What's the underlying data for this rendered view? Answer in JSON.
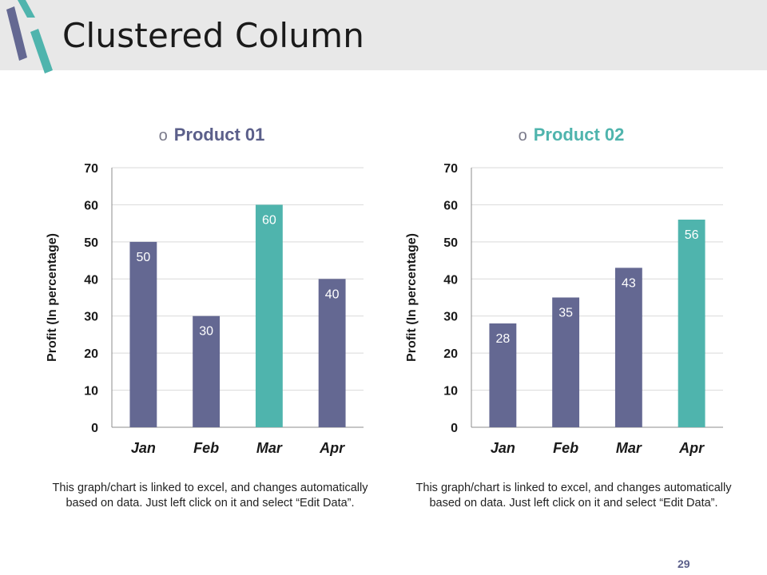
{
  "slide": {
    "title": "Clustered Column",
    "page_number": "29"
  },
  "colors": {
    "primary": "#646892",
    "accent": "#4fb4ad",
    "header_band": "#e8e8e8"
  },
  "bullet": "o",
  "chart_data": [
    {
      "type": "bar",
      "title": "Product 01",
      "title_color": "#5b5f8a",
      "categories": [
        "Jan",
        "Feb",
        "Mar",
        "Apr"
      ],
      "values": [
        50,
        30,
        60,
        40
      ],
      "bar_colors": [
        "#646892",
        "#646892",
        "#4fb4ad",
        "#646892"
      ],
      "xlabel": "",
      "ylabel": "Profit  (In percentage)",
      "ylim": [
        0,
        70
      ],
      "yticks": [
        0,
        10,
        20,
        30,
        40,
        50,
        60,
        70
      ],
      "grid": true,
      "caption": "This graph/chart is linked to excel, and changes automatically based on data. Just left click on it and select “Edit Data”."
    },
    {
      "type": "bar",
      "title": "Product 02",
      "title_color": "#4fb4ad",
      "categories": [
        "Jan",
        "Feb",
        "Mar",
        "Apr"
      ],
      "values": [
        28,
        35,
        43,
        56
      ],
      "bar_colors": [
        "#646892",
        "#646892",
        "#646892",
        "#4fb4ad"
      ],
      "xlabel": "",
      "ylabel": "Profit  (In percentage)",
      "ylim": [
        0,
        70
      ],
      "yticks": [
        0,
        10,
        20,
        30,
        40,
        50,
        60,
        70
      ],
      "grid": true,
      "caption": "This graph/chart is linked to excel, and changes automatically based on data. Just left click on it and select “Edit Data”."
    }
  ]
}
